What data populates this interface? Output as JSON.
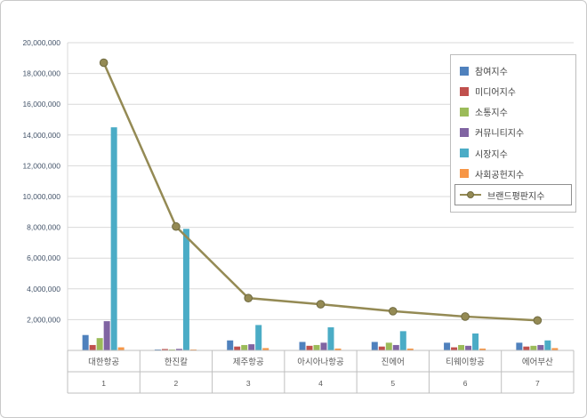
{
  "chart": {
    "background": "#ffffff",
    "frame_border_color": "#c9c9c9",
    "grid_color": "#d9d9d9",
    "axis_line_color": "#bfbfbf",
    "axis_text_color": "#44546A",
    "category_text_color": "#595959",
    "legend_text_color": "#404040"
  },
  "chart_data": {
    "type": "bar",
    "subtype": "grouped-bars-with-line-overlay",
    "title": "",
    "xlabel": "",
    "ylabel": "",
    "categories": [
      "대한항공",
      "한진칼",
      "제주항공",
      "아시아나항공",
      "진에어",
      "티웨이항공",
      "에어부산"
    ],
    "category_numbers": [
      "1",
      "2",
      "3",
      "4",
      "5",
      "6",
      "7"
    ],
    "series": [
      {
        "name": "참여지수",
        "type": "bar",
        "color": "#4F81BD",
        "values": [
          1000000,
          60000,
          650000,
          550000,
          550000,
          500000,
          500000
        ]
      },
      {
        "name": "미디어지수",
        "type": "bar",
        "color": "#C0504D",
        "values": [
          350000,
          90000,
          250000,
          300000,
          250000,
          200000,
          250000
        ]
      },
      {
        "name": "소통지수",
        "type": "bar",
        "color": "#9BBB59",
        "values": [
          800000,
          60000,
          350000,
          350000,
          500000,
          350000,
          300000
        ]
      },
      {
        "name": "커뮤니티지수",
        "type": "bar",
        "color": "#8064A2",
        "values": [
          1900000,
          100000,
          400000,
          500000,
          350000,
          300000,
          350000
        ]
      },
      {
        "name": "시장지수",
        "type": "bar",
        "color": "#4BACC6",
        "values": [
          14500000,
          7900000,
          1650000,
          1500000,
          1250000,
          1100000,
          650000
        ]
      },
      {
        "name": "사회공헌지수",
        "type": "bar",
        "color": "#F79646",
        "values": [
          200000,
          60000,
          150000,
          120000,
          120000,
          120000,
          150000
        ]
      },
      {
        "name": "브랜드평판지수",
        "type": "line",
        "color": "#948A54",
        "values": [
          18700000,
          8050000,
          3400000,
          3000000,
          2550000,
          2200000,
          1950000
        ]
      }
    ],
    "ylim": [
      0,
      20000000
    ],
    "ytick_interval": 2000000,
    "ytick_labels": [
      "2,000,000",
      "4,000,000",
      "6,000,000",
      "8,000,000",
      "10,000,000",
      "12,000,000",
      "14,000,000",
      "16,000,000",
      "18,000,000",
      "20,000,000"
    ],
    "grid": true,
    "legend_position": "top-right",
    "legend_entries": [
      "참여지수",
      "미디어지수",
      "소통지수",
      "커뮤니티지수",
      "시장지수",
      "사회공헌지수",
      "브랜드평판지수"
    ]
  }
}
